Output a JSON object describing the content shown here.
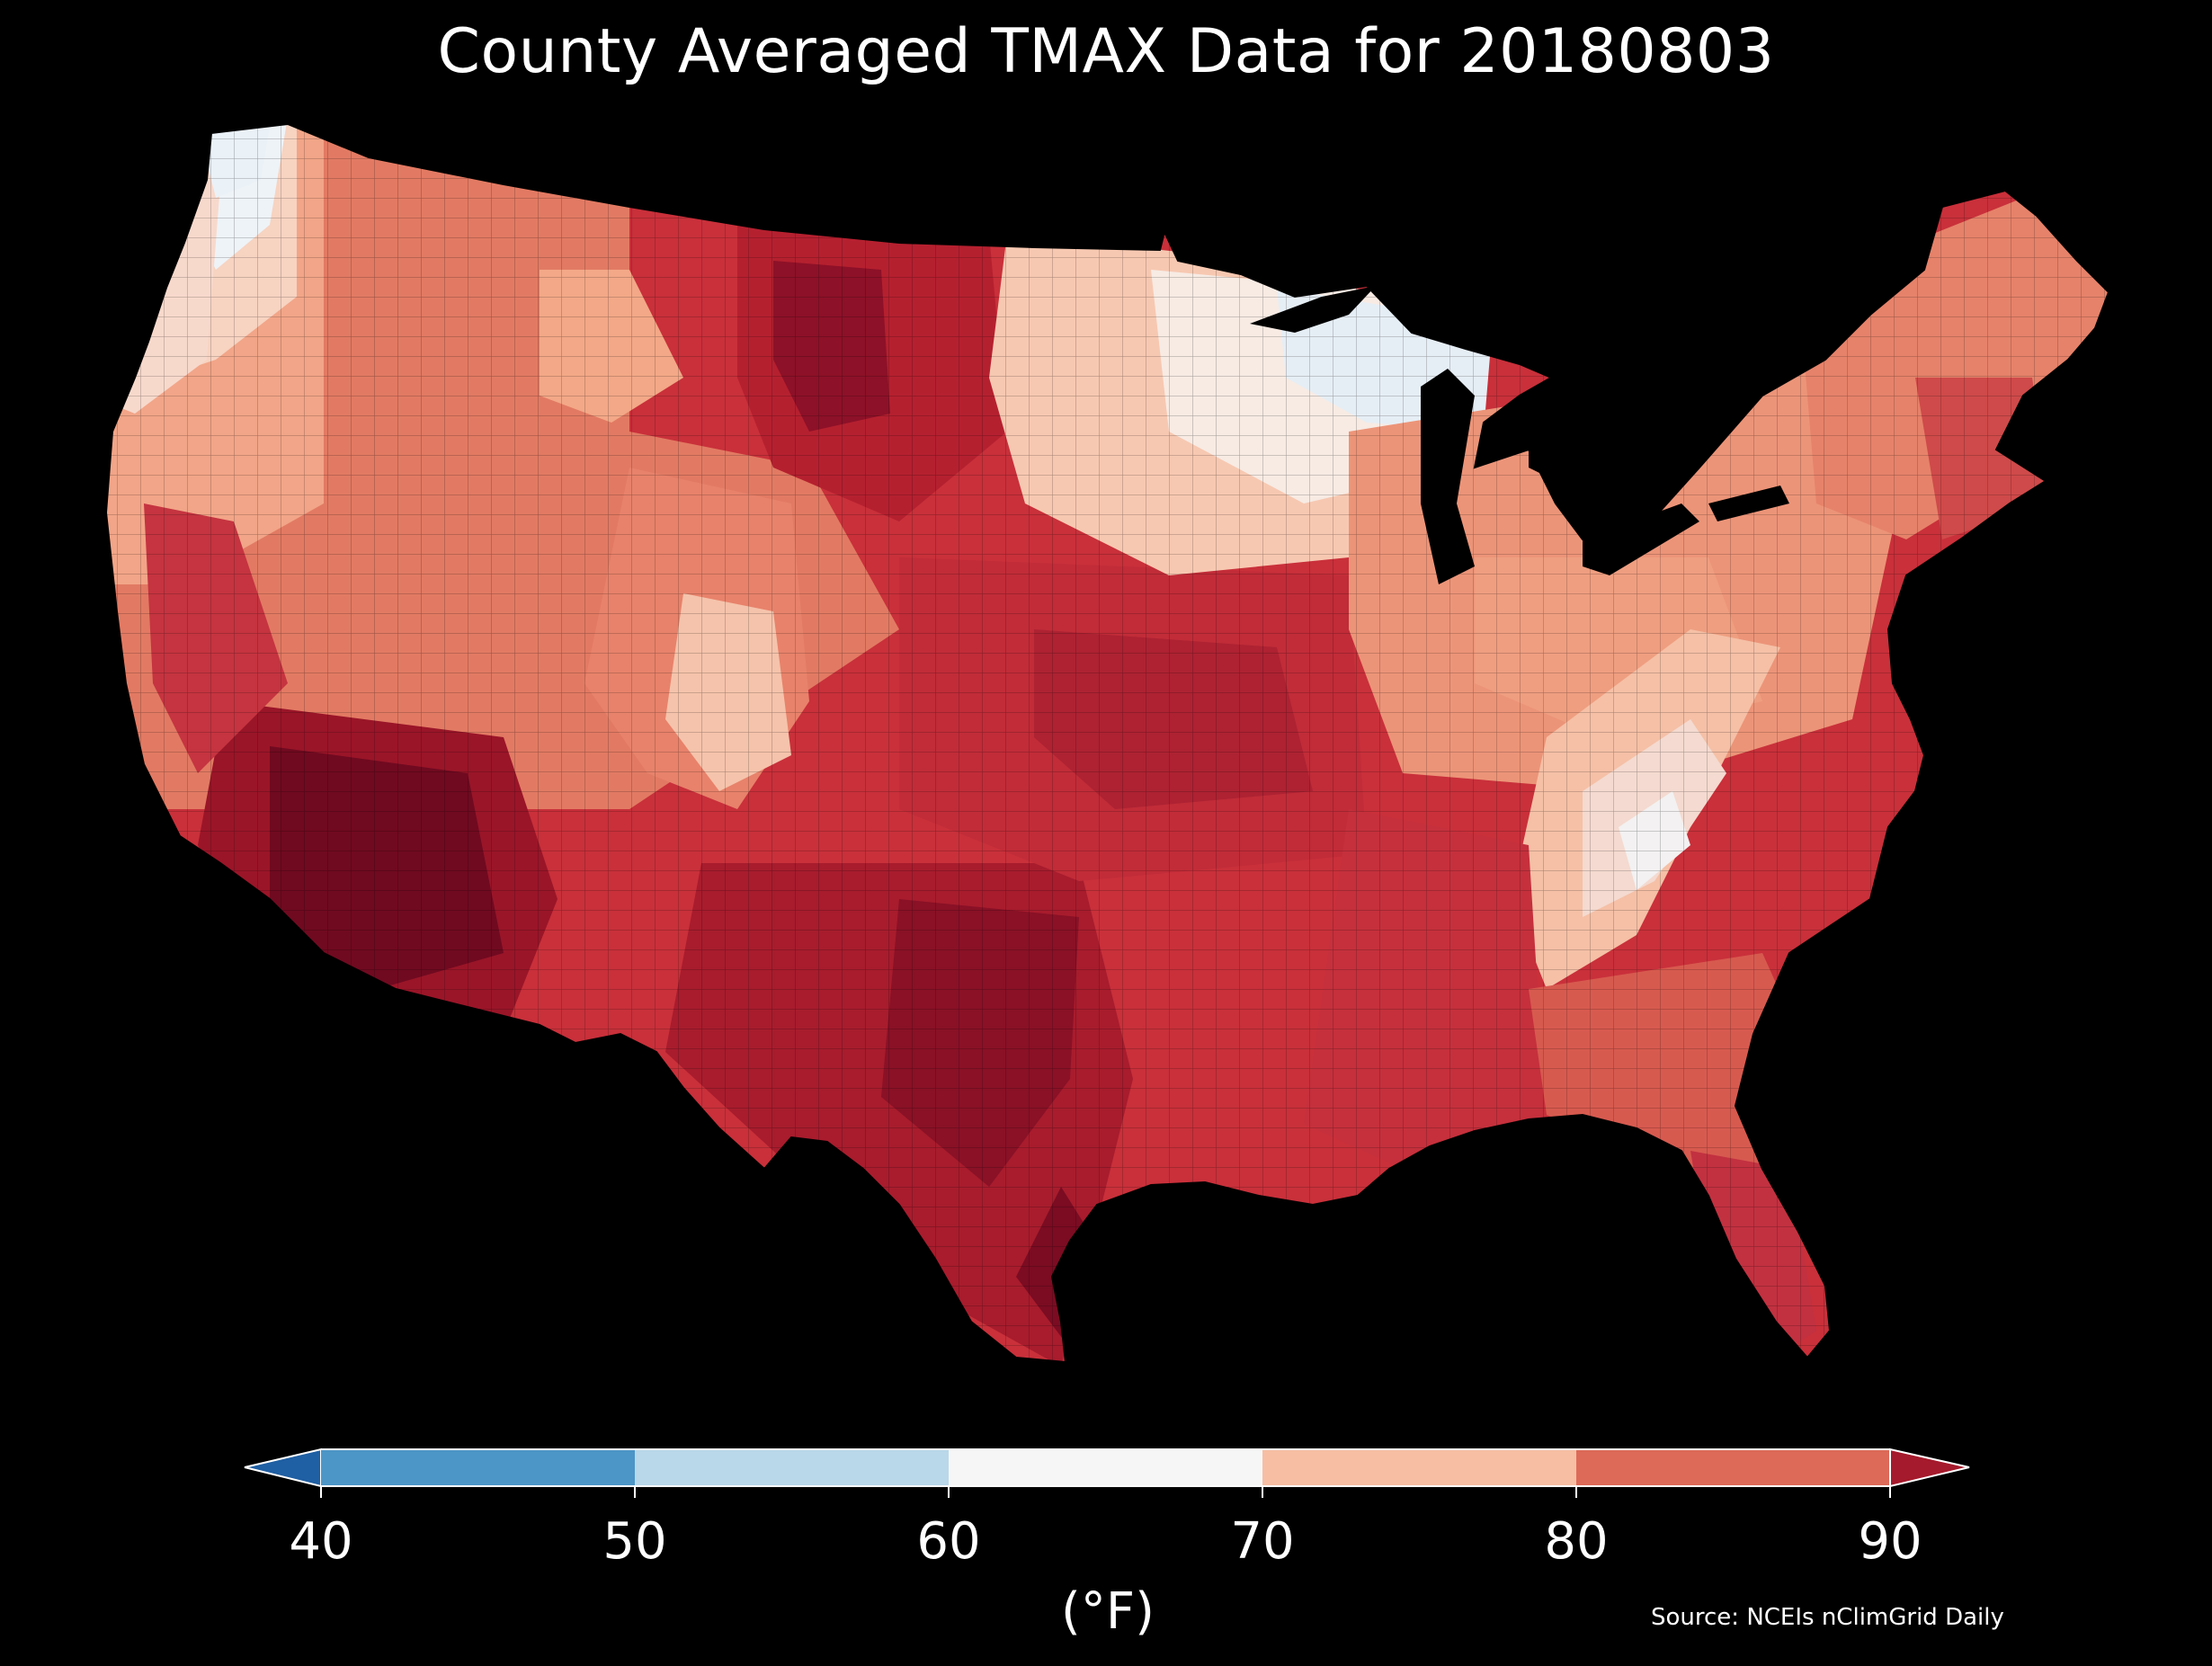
{
  "title": "County Averaged TMAX Data for 20180803",
  "colorbar": {
    "ticks": [
      "40",
      "50",
      "60",
      "70",
      "80",
      "90"
    ],
    "unit": "(°F)",
    "bins": [
      {
        "range": "<40",
        "color": "#1f5fa3"
      },
      {
        "range": "40-50",
        "color": "#4c96c7"
      },
      {
        "range": "50-60",
        "color": "#b9d8ea"
      },
      {
        "range": "60-70",
        "color": "#f6f6f6"
      },
      {
        "range": "70-80",
        "color": "#f7bea3"
      },
      {
        "range": "80-90",
        "color": "#dd6a58"
      },
      {
        "range": ">90",
        "color": "#a51a2c"
      }
    ]
  },
  "map": {
    "region": "Contiguous United States",
    "variable": "TMAX",
    "date": "20180803",
    "regional_values_F": {
      "pacific_northwest_coast": "60-70",
      "upper_michigan_wisconsin": "60-70",
      "appalachians": "70-80",
      "northern_plains": ">90",
      "desert_southwest": ">90",
      "texas": ">90",
      "central_plains": "85-90",
      "great_lakes_midwest": "70-80",
      "southeast": "80-90",
      "florida": "85-90",
      "new_england": "75-85"
    }
  },
  "source": "Source: NCEIs nClimGrid Daily"
}
